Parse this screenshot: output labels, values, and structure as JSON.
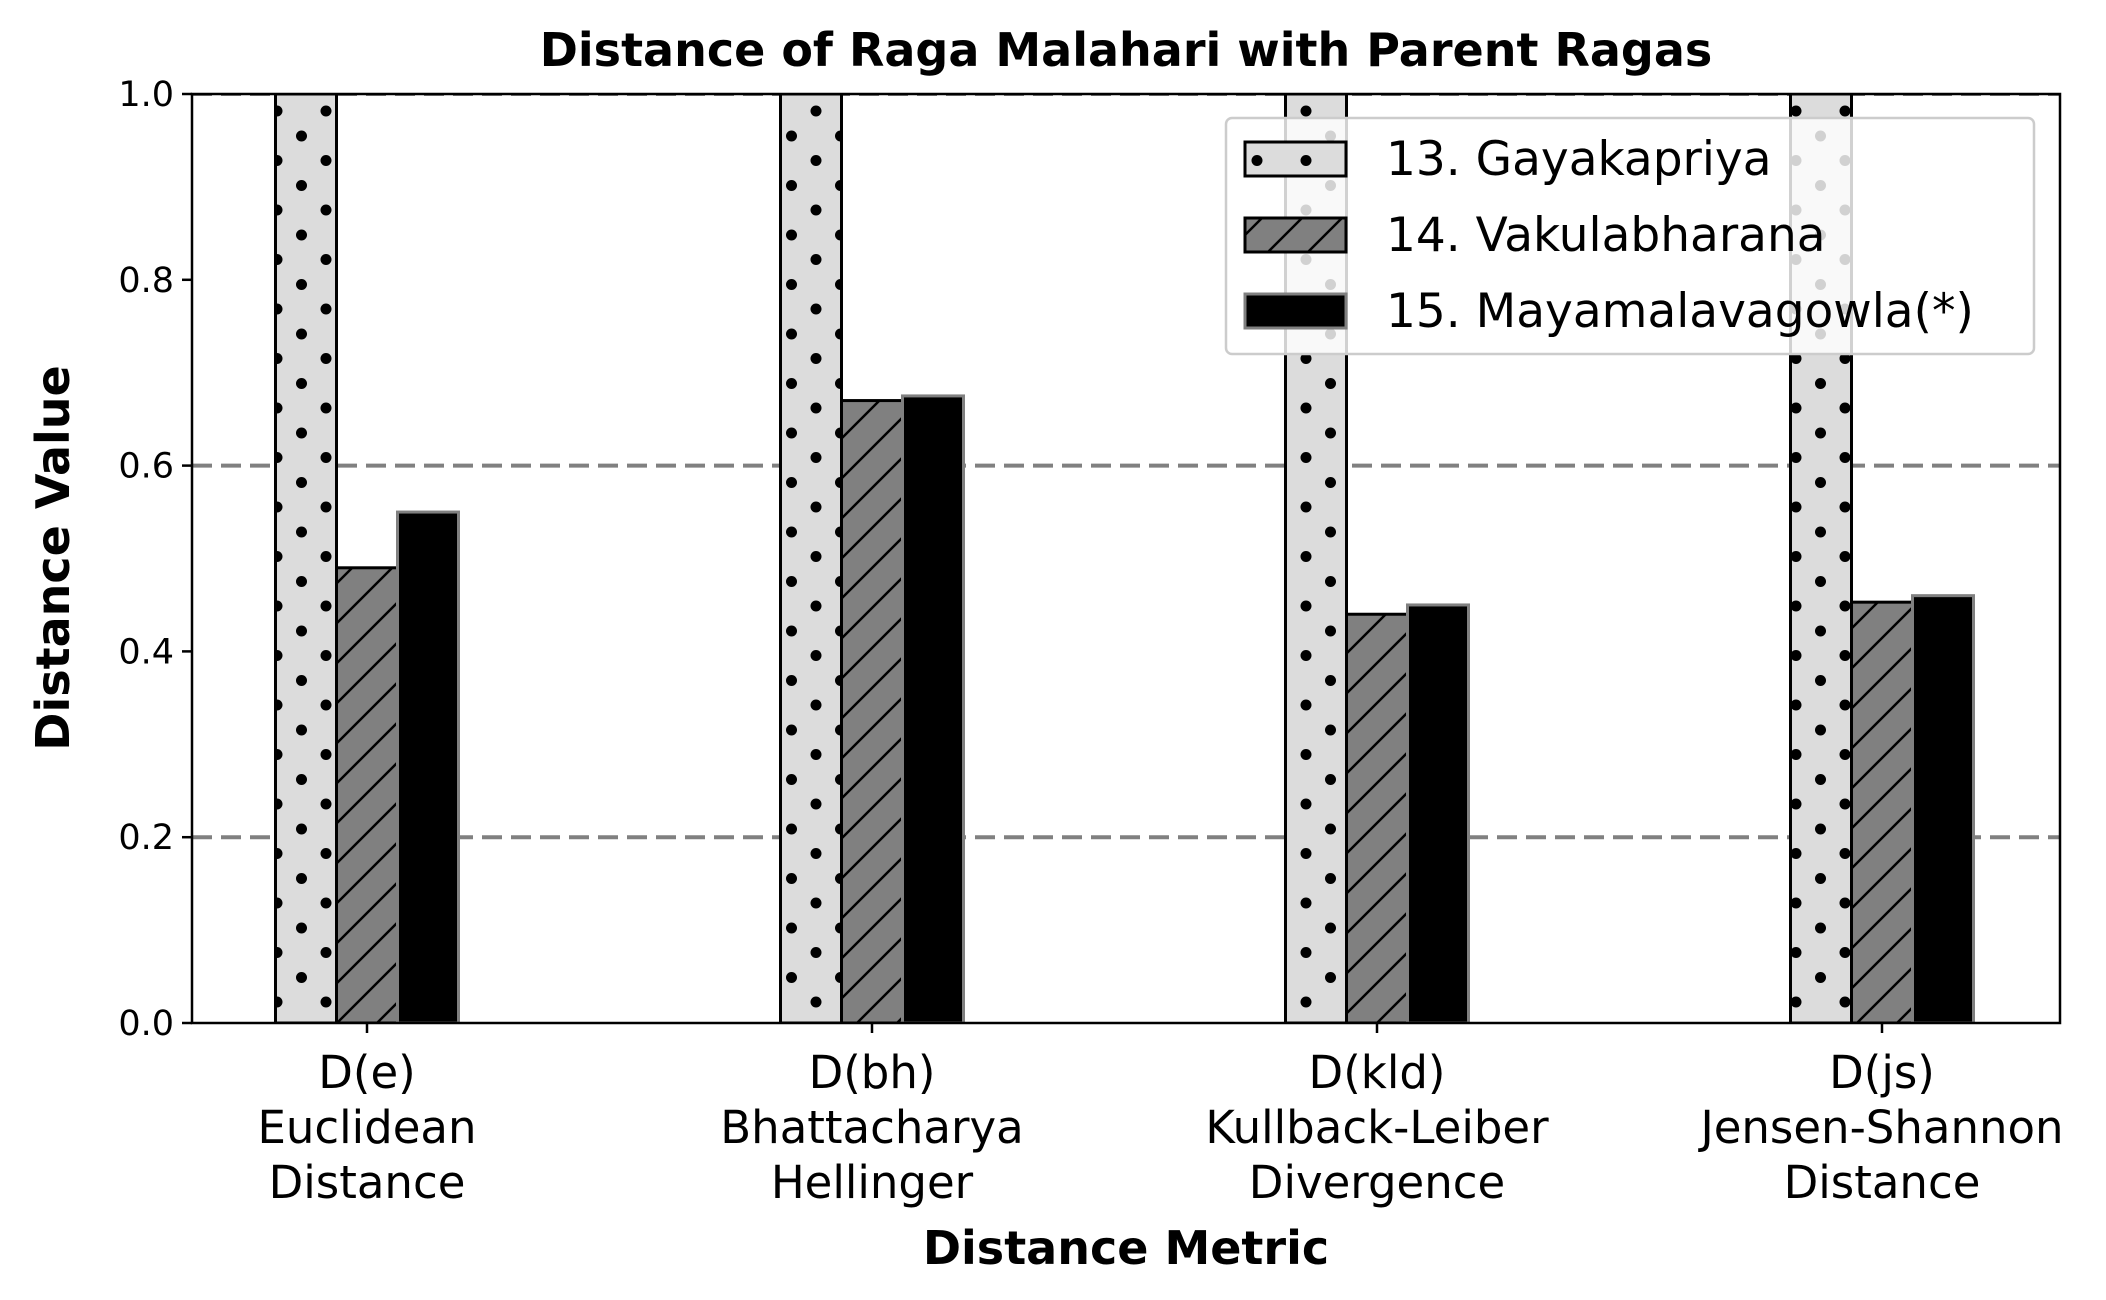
{
  "chart_data": {
    "type": "bar",
    "title": "Distance of Raga Malahari with Parent Ragas",
    "xlabel": "Distance Metric",
    "ylabel": "Distance Value",
    "ylim": [
      0,
      1.0
    ],
    "yticks": [
      "0.0",
      "0.2",
      "0.4",
      "0.6",
      "0.8",
      "1.0"
    ],
    "reference_lines": [
      0.2,
      0.6,
      1.0
    ],
    "legend_position": "top-right",
    "categories": [
      [
        "D(e)",
        "Euclidean",
        "Distance"
      ],
      [
        "D(bh)",
        "Bhattacharya",
        "Hellinger"
      ],
      [
        "D(kld)",
        "Kullback-Leiber",
        "Divergence"
      ],
      [
        "D(js)",
        "Jensen-Shannon",
        "Distance"
      ]
    ],
    "series": [
      {
        "name": "13. Gayakapriya",
        "values": [
          1.0,
          1.0,
          1.0,
          1.0
        ],
        "fill": "#dcdcdc",
        "hatch": "dots"
      },
      {
        "name": "14. Vakulabharana",
        "values": [
          0.49,
          0.67,
          0.44,
          0.453
        ],
        "fill": "#808080",
        "hatch": "diagonal"
      },
      {
        "name": "15. Mayamalavagowla(*)",
        "values": [
          0.55,
          0.675,
          0.45,
          0.46
        ],
        "fill": "#000000",
        "hatch": "none"
      }
    ]
  }
}
